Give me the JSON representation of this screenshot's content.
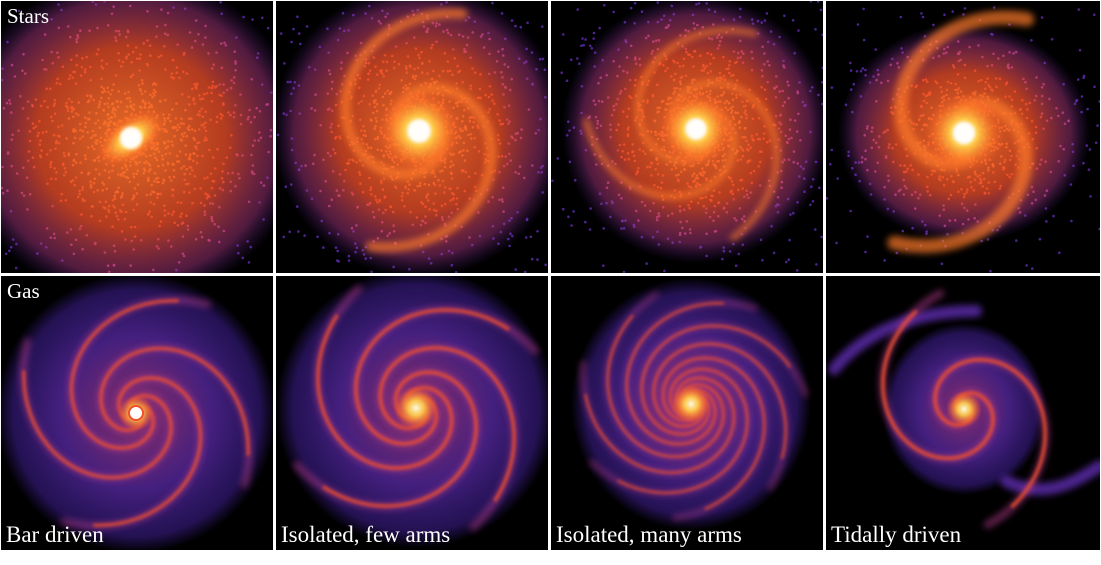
{
  "figure": {
    "rows": [
      {
        "label": "Stars"
      },
      {
        "label": "Gas"
      }
    ],
    "columns": [
      {
        "label": "Bar driven"
      },
      {
        "label": "Isolated, few arms"
      },
      {
        "label": "Isolated, many arms"
      },
      {
        "label": "Tidally driven"
      }
    ]
  },
  "colors": {
    "background": "#000000",
    "separator": "#ffffff",
    "core": "#fffbe0",
    "yellow": "#ffd24a",
    "orange": "#ff7a2a",
    "red_orange": "#f0502a",
    "magenta": "#b43c8c",
    "purple": "#5a2aa8",
    "indigo": "#3c1e8c"
  },
  "panel_content": {
    "stars": [
      {
        "name": "bar-driven-stars",
        "morphology": "bar with diffuse stellar disc"
      },
      {
        "name": "isolated-few-arms-stars",
        "morphology": "grand design spiral"
      },
      {
        "name": "isolated-many-arms-stars",
        "morphology": "flocculant multi-arm spiral"
      },
      {
        "name": "tidally-driven-stars",
        "morphology": "two-arm tidal spiral with tail"
      }
    ],
    "gas": [
      {
        "name": "bar-driven-gas",
        "morphology": "barred spiral gas arms"
      },
      {
        "name": "isolated-few-arms-gas",
        "morphology": "few-armed gas spiral"
      },
      {
        "name": "isolated-many-arms-gas",
        "morphology": "many-armed gas spiral"
      },
      {
        "name": "tidally-driven-gas",
        "morphology": "tidal gas spiral with tails"
      }
    ]
  }
}
